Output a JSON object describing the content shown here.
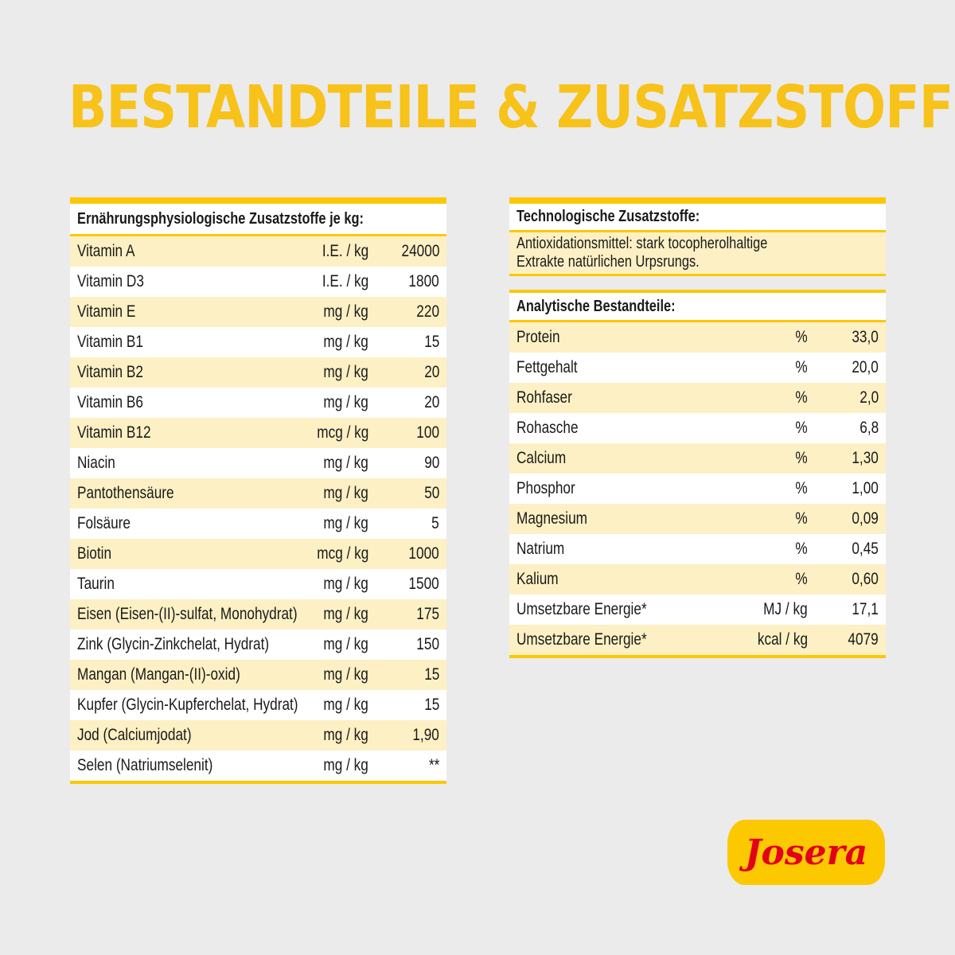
{
  "title": "Bestandteile & Zusatzstoffe",
  "nutritional_additives": {
    "header": "Ernährungsphysiologische Zusatzstoffe je kg:",
    "rows": [
      {
        "name": "Vitamin A",
        "unit": "I.E. / kg",
        "value": "24000"
      },
      {
        "name": "Vitamin D3",
        "unit": "I.E. / kg",
        "value": "1800"
      },
      {
        "name": "Vitamin E",
        "unit": "mg / kg",
        "value": "220"
      },
      {
        "name": "Vitamin B1",
        "unit": "mg / kg",
        "value": "15"
      },
      {
        "name": "Vitamin B2",
        "unit": "mg / kg",
        "value": "20"
      },
      {
        "name": "Vitamin B6",
        "unit": "mg / kg",
        "value": "20"
      },
      {
        "name": "Vitamin B12",
        "unit": "mcg / kg",
        "value": "100"
      },
      {
        "name": "Niacin",
        "unit": "mg / kg",
        "value": "90"
      },
      {
        "name": "Pantothensäure",
        "unit": "mg / kg",
        "value": "50"
      },
      {
        "name": "Folsäure",
        "unit": "mg / kg",
        "value": "5"
      },
      {
        "name": "Biotin",
        "unit": "mcg / kg",
        "value": "1000"
      },
      {
        "name": "Taurin",
        "unit": "mg / kg",
        "value": "1500"
      },
      {
        "name": "Eisen (Eisen-(II)-sulfat, Monohydrat)",
        "unit": "mg / kg",
        "value": "175"
      },
      {
        "name": "Zink (Glycin-Zinkchelat, Hydrat)",
        "unit": "mg / kg",
        "value": "150"
      },
      {
        "name": "Mangan (Mangan-(II)-oxid)",
        "unit": "mg / kg",
        "value": "15"
      },
      {
        "name": "Kupfer (Glycin-Kupferchelat, Hydrat)",
        "unit": "mg / kg",
        "value": "15"
      },
      {
        "name": "Jod (Calciumjodat)",
        "unit": "mg / kg",
        "value": "1,90"
      },
      {
        "name": "Selen (Natriumselenit)",
        "unit": "mg / kg",
        "value": "**"
      }
    ]
  },
  "technological_additives": {
    "header": "Technologische Zusatzstoffe:",
    "lines": [
      "Antioxidationsmittel: stark tocopherolhaltige",
      "Extrakte natürlichen Urpsrungs."
    ]
  },
  "analytical": {
    "header": "Analytische Bestandteile:",
    "rows": [
      {
        "name": "Protein",
        "unit": "%",
        "value": "33,0"
      },
      {
        "name": "Fettgehalt",
        "unit": "%",
        "value": "20,0"
      },
      {
        "name": "Rohfaser",
        "unit": "%",
        "value": "2,0"
      },
      {
        "name": "Rohasche",
        "unit": "%",
        "value": "6,8"
      },
      {
        "name": "Calcium",
        "unit": "%",
        "value": "1,30"
      },
      {
        "name": "Phosphor",
        "unit": "%",
        "value": "1,00"
      },
      {
        "name": "Magnesium",
        "unit": "%",
        "value": "0,09"
      },
      {
        "name": "Natrium",
        "unit": "%",
        "value": "0,45"
      },
      {
        "name": "Kalium",
        "unit": "%",
        "value": "0,60"
      },
      {
        "name": "Umsetzbare Energie*",
        "unit": "MJ / kg",
        "value": "17,1"
      },
      {
        "name": "Umsetzbare Energie*",
        "unit": "kcal / kg",
        "value": "4079"
      }
    ]
  },
  "logo": "Josera",
  "colors": {
    "accent": "#fcc800",
    "row_highlight": "#fdf0c4",
    "logo_text": "#e2001a",
    "background": "#ebebeb"
  }
}
